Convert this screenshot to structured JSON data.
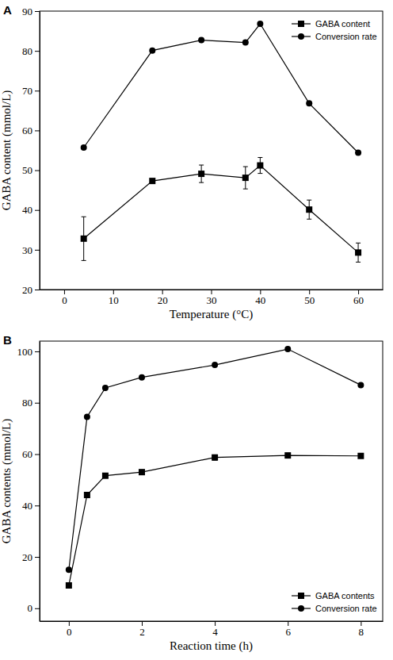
{
  "chart_data": [
    {
      "type": "line",
      "title": "A",
      "xlabel": "Temperature (°C)",
      "ylabel": "GABA content (mmol/L)",
      "x": [
        4,
        18,
        28,
        37,
        40,
        50,
        60
      ],
      "xlim": [
        -5,
        65
      ],
      "xticks": [
        0,
        10,
        20,
        30,
        40,
        50,
        60
      ],
      "ylim": [
        20,
        90
      ],
      "yticks": [
        20,
        30,
        40,
        50,
        60,
        70,
        80,
        90
      ],
      "legend": "upper right",
      "series": [
        {
          "name": "GABA content",
          "color": "#000000",
          "marker": "square",
          "values": [
            32.8,
            47.3,
            49.1,
            48.1,
            51.2,
            40.1,
            29.3
          ],
          "error": [
            5.5,
            0.5,
            2.2,
            2.8,
            2.0,
            2.4,
            2.4
          ]
        },
        {
          "name": "Conversion rate",
          "color": "#000000",
          "marker": "circle",
          "values": [
            55.7,
            80.1,
            82.7,
            82.1,
            86.8,
            66.8,
            54.4
          ]
        }
      ]
    },
    {
      "type": "line",
      "title": "B",
      "xlabel": "Reaction time (h)",
      "ylabel": "GABA contents (mmol/L)",
      "x": [
        0,
        0.5,
        1,
        2,
        4,
        6,
        8
      ],
      "xlim": [
        -0.8,
        8.6
      ],
      "xticks": [
        0,
        2,
        4,
        6,
        8
      ],
      "ylim": [
        -5,
        104
      ],
      "yticks": [
        0,
        20,
        40,
        60,
        80,
        100
      ],
      "legend": "lower right",
      "series": [
        {
          "name": "GABA contents",
          "color": "#000000",
          "marker": "square",
          "values": [
            8.9,
            44.1,
            51.6,
            53.0,
            58.7,
            59.5,
            59.3
          ],
          "error": [
            0.3,
            0.3,
            0.3,
            0.3,
            1.0,
            0.3,
            0.3
          ]
        },
        {
          "name": "Conversion rate",
          "color": "#000000",
          "marker": "circle",
          "values": [
            15.0,
            74.5,
            85.8,
            89.9,
            94.7,
            100.9,
            86.9
          ]
        }
      ]
    }
  ]
}
